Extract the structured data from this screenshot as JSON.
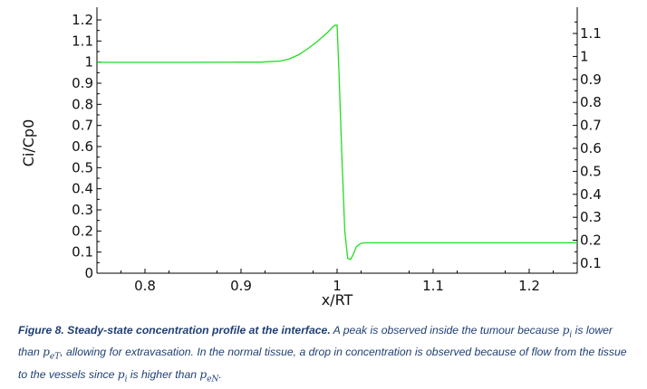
{
  "chart_data": {
    "type": "line",
    "xlabel": "x/RT",
    "ylabel": "Ci/Cp0",
    "xlim": [
      0.75,
      1.25
    ],
    "ylim_left": [
      0,
      1.22
    ],
    "ylim_right": [
      0.05,
      1.22
    ],
    "x_ticks": [
      0.8,
      0.9,
      1,
      1.1,
      1.2
    ],
    "x_tick_labels": [
      "0.8",
      "0.9",
      "1",
      "1.1",
      "1.2"
    ],
    "y_ticks_left": [
      0,
      0.1,
      0.2,
      0.3,
      0.4,
      0.5,
      0.6,
      0.7,
      0.8,
      0.9,
      1,
      1.1,
      1.2
    ],
    "y_tick_labels_left": [
      "0",
      "0.1",
      "0.2",
      "0.3",
      "0.4",
      "0.5",
      "0.6",
      "0.7",
      "0.8",
      "0.9",
      "1",
      "1.1",
      "1.2"
    ],
    "y_ticks_right": [
      0.1,
      0.2,
      0.3,
      0.4,
      0.5,
      0.6,
      0.7,
      0.8,
      0.9,
      1,
      1.1
    ],
    "y_tick_labels_right": [
      "0.1",
      "0.2",
      "0.3",
      "0.4",
      "0.5",
      "0.6",
      "0.7",
      "0.8",
      "0.9",
      "1",
      "1.1"
    ],
    "grid": false,
    "line_color": "#22dd22",
    "series": [
      {
        "x": [
          0.75,
          0.8,
          0.85,
          0.9,
          0.92,
          0.94,
          0.95,
          0.96,
          0.97,
          0.98,
          0.99,
          0.995,
          0.998,
          1.0,
          1.002,
          1.005,
          1.008,
          1.011,
          1.014,
          1.017,
          1.02,
          1.025,
          1.03,
          1.05,
          1.1,
          1.15,
          1.2,
          1.25
        ],
        "y": [
          0.999,
          0.999,
          0.999,
          1.0,
          1.0,
          1.005,
          1.015,
          1.035,
          1.065,
          1.1,
          1.14,
          1.165,
          1.175,
          1.175,
          0.95,
          0.55,
          0.2,
          0.07,
          0.065,
          0.09,
          0.125,
          0.142,
          0.144,
          0.144,
          0.144,
          0.144,
          0.144,
          0.144
        ]
      }
    ]
  },
  "caption": {
    "label": "Figure 8. Steady-state concentration profile at the interface.",
    "text_1": " A peak is observed inside the tumour because ",
    "p_symbol": "p",
    "sub_i": "i",
    "text_2": "  is lower than ",
    "sub_eT": "eT",
    "text_3": ", allowing for extravasation. In the normal tissue, a drop in concentration is observed because of flow from the tissue to the vessels since ",
    "text_4": " is higher than ",
    "sub_eN": "eN",
    "text_5": "."
  }
}
